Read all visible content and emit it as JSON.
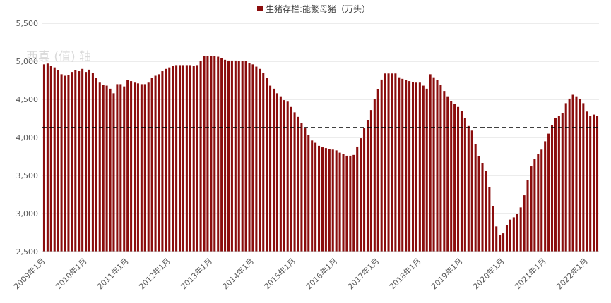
{
  "chart_data": {
    "type": "bar",
    "title": "",
    "xlabel": "",
    "ylabel": "",
    "legend": {
      "label": "生猪存栏:能繁母猪（万头）",
      "position": "top"
    },
    "watermark": "西真 (值) 轴",
    "ylim": [
      2500,
      5500
    ],
    "y_ticks": [
      "2,500",
      "3,000",
      "3,500",
      "4,000",
      "4,500",
      "5,000",
      "5,500"
    ],
    "y_tick_values": [
      2500,
      3000,
      3500,
      4000,
      4500,
      5000,
      5500
    ],
    "x_tick_labels": [
      "2009年1月",
      "2010年1月",
      "2011年1月",
      "2012年1月",
      "2013年1月",
      "2014年1月",
      "2015年1月",
      "2016年1月",
      "2017年1月",
      "2018年1月",
      "2019年1月",
      "2020年1月",
      "2021年1月",
      "2022年1月"
    ],
    "reference_line": {
      "value": 4130,
      "style": "dashed"
    },
    "start": "2009-01",
    "bar_color": "#8b0d0d",
    "values": [
      4960,
      4970,
      4940,
      4920,
      4880,
      4830,
      4810,
      4820,
      4860,
      4880,
      4870,
      4900,
      4860,
      4890,
      4850,
      4780,
      4720,
      4690,
      4680,
      4640,
      4580,
      4700,
      4700,
      4670,
      4750,
      4740,
      4720,
      4710,
      4700,
      4700,
      4720,
      4780,
      4810,
      4830,
      4870,
      4900,
      4920,
      4940,
      4950,
      4950,
      4950,
      4950,
      4950,
      4940,
      4950,
      5000,
      5070,
      5070,
      5070,
      5070,
      5060,
      5040,
      5020,
      5010,
      5010,
      5010,
      5000,
      5000,
      5000,
      4980,
      4960,
      4930,
      4900,
      4850,
      4780,
      4680,
      4640,
      4580,
      4540,
      4490,
      4470,
      4400,
      4330,
      4270,
      4190,
      4120,
      4030,
      3960,
      3930,
      3890,
      3870,
      3860,
      3850,
      3840,
      3830,
      3800,
      3780,
      3760,
      3760,
      3770,
      3880,
      3990,
      4120,
      4230,
      4360,
      4500,
      4630,
      4760,
      4840,
      4840,
      4840,
      4840,
      4790,
      4770,
      4750,
      4740,
      4730,
      4720,
      4720,
      4680,
      4640,
      4830,
      4790,
      4750,
      4690,
      4610,
      4540,
      4480,
      4440,
      4400,
      4350,
      4250,
      4150,
      4090,
      3910,
      3750,
      3660,
      3560,
      3350,
      3100,
      2830,
      2720,
      2740,
      2850,
      2920,
      2950,
      3000,
      3080,
      3240,
      3440,
      3620,
      3720,
      3780,
      3840,
      3950,
      4050,
      4160,
      4250,
      4280,
      4320,
      4450,
      4510,
      4560,
      4540,
      4500,
      4450,
      4340,
      4280,
      4300,
      4280
    ]
  }
}
